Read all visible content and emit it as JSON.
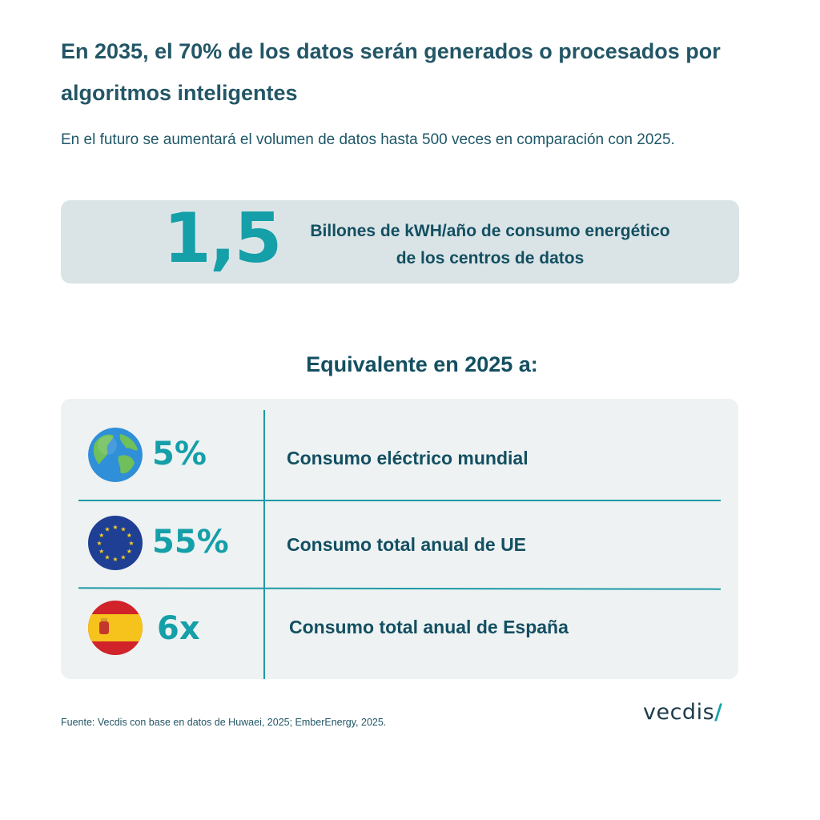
{
  "header": {
    "title": "En 2035, el 70% de los datos serán generados o procesados por algoritmos inteligentes",
    "subtitle": "En el futuro se aumentará el volumen de datos hasta 500 veces en comparación con 2025."
  },
  "hero": {
    "value": "1,5",
    "text": "Billones de kWH/año de consumo energético de los centros de datos"
  },
  "equivalence": {
    "heading": "Equivalente en 2025 a:",
    "rows": [
      {
        "icon": "globe-icon",
        "value": "5%",
        "label": "Consumo eléctrico mundial"
      },
      {
        "icon": "eu-flag-icon",
        "value": "55%",
        "label": "Consumo total anual de UE"
      },
      {
        "icon": "spain-flag-icon",
        "value": "6x",
        "label": "Consumo total anual de España"
      }
    ]
  },
  "footer": {
    "source": "Fuente: Vecdis con base en datos de Huwaei, 2025; EmberEnergy, 2025.",
    "logo": "vecdis",
    "logo_mark": "/"
  },
  "colors": {
    "title": "#235666",
    "accent": "#159fa8",
    "hero_bg": "#dae4e6",
    "table_bg": "#eef2f3"
  }
}
